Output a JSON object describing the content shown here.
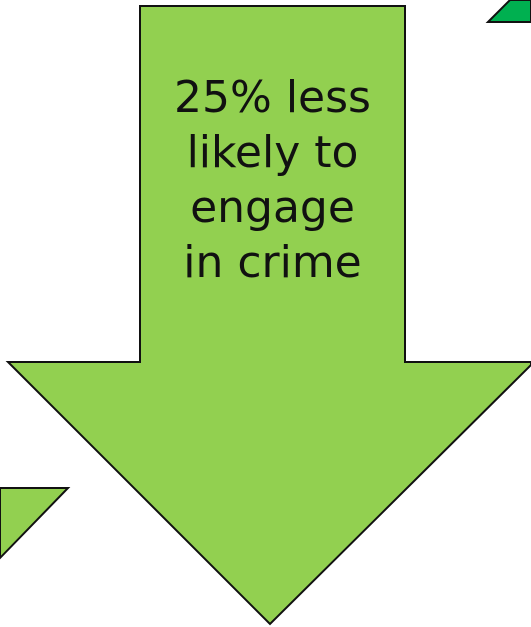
{
  "diagram": {
    "main_arrow": {
      "lines": [
        "25% less",
        "likely to",
        "engage",
        "in crime"
      ],
      "fill": "#92d050",
      "stroke": "#111111"
    },
    "partial_arrows": {
      "top_right_fill": "#00b050",
      "bottom_left_fill": "#92d050"
    }
  }
}
